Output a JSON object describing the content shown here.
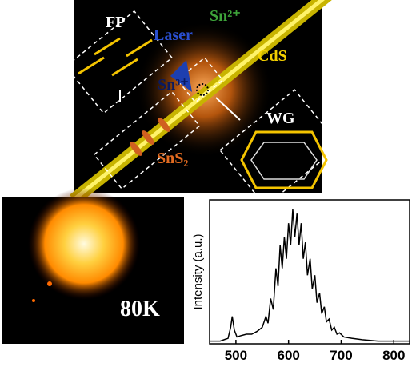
{
  "schematic": {
    "labels": {
      "fp": "FP",
      "sn2": "Sn²⁺",
      "laser": "Laser",
      "cds": "CdS",
      "sn3": "Sn³⁺",
      "sns2": "SnS₂",
      "wg": "WG"
    }
  },
  "photo": {
    "label": "80K"
  },
  "chart_data": {
    "type": "line",
    "y_label": "Intensity (a.u.)",
    "x": [
      450,
      470,
      485,
      490,
      493,
      497,
      502,
      510,
      520,
      530,
      540,
      550,
      557,
      561,
      566,
      571,
      576,
      580,
      584,
      588,
      592,
      596,
      600,
      604,
      608,
      612,
      616,
      620,
      624,
      628,
      632,
      636,
      641,
      645,
      650,
      654,
      659,
      663,
      668,
      672,
      677,
      682,
      687,
      692,
      697,
      705,
      720,
      740,
      770,
      800,
      830
    ],
    "series": [
      {
        "color": "#000000",
        "values": [
          0.02,
          0.02,
          0.04,
          0.12,
          0.2,
          0.1,
          0.05,
          0.06,
          0.07,
          0.07,
          0.09,
          0.12,
          0.2,
          0.15,
          0.33,
          0.25,
          0.55,
          0.42,
          0.72,
          0.55,
          0.78,
          0.62,
          0.88,
          0.72,
          0.98,
          0.78,
          0.95,
          0.72,
          0.88,
          0.62,
          0.74,
          0.5,
          0.62,
          0.4,
          0.5,
          0.3,
          0.37,
          0.22,
          0.27,
          0.16,
          0.18,
          0.1,
          0.12,
          0.07,
          0.08,
          0.05,
          0.04,
          0.03,
          0.02,
          0.02,
          0.02
        ]
      }
    ],
    "xlim": [
      450,
      830
    ],
    "ylim": [
      0,
      1.05
    ],
    "xticks": [
      500,
      600,
      700,
      800
    ]
  }
}
